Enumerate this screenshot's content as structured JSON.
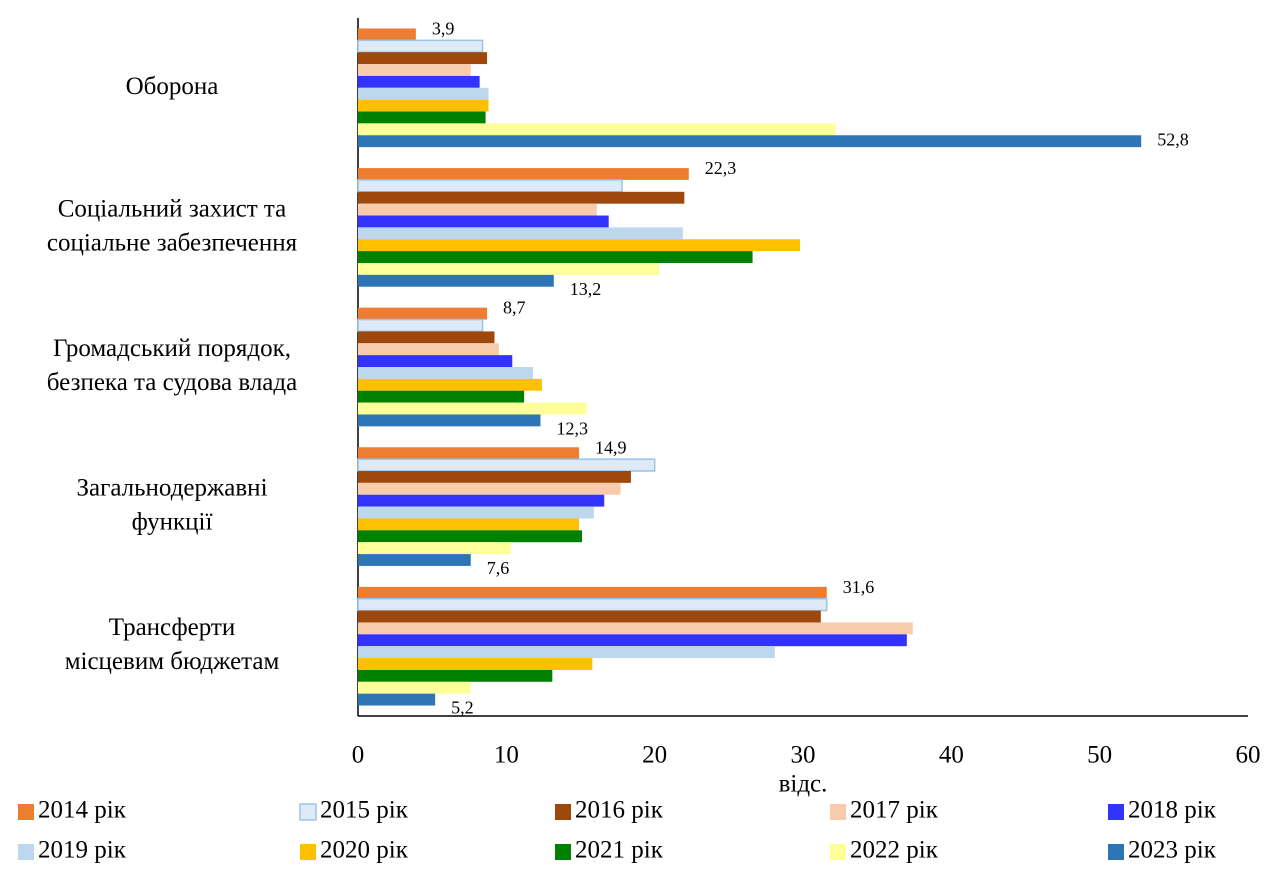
{
  "chart_data": {
    "type": "barh",
    "x_label": "відс.",
    "categories": [
      "Оборона",
      "Соціальний захист та\nсоціальне забезпечення",
      "Громадський порядок,\nбезпека та судова влада",
      "Загальнодержавні\nфункції",
      "Трансферти\nмісцевим бюджетам"
    ],
    "series": [
      {
        "name": "2014 рік",
        "color": "#ed7d31",
        "values": [
          3.9,
          22.3,
          8.7,
          14.9,
          31.6
        ],
        "value_labels": [
          "3,9",
          "22,3",
          "8,7",
          "14,9",
          "31,6"
        ]
      },
      {
        "name": "2015 рік",
        "color": "#deeaf8",
        "edge": "#9dc3e6",
        "values": [
          8.4,
          17.8,
          8.4,
          20.0,
          31.6
        ]
      },
      {
        "name": "2016 рік",
        "color": "#9e480e",
        "values": [
          8.7,
          22.0,
          9.2,
          18.4,
          31.2
        ]
      },
      {
        "name": "2017 рік",
        "color": "#f8cbad",
        "values": [
          7.6,
          16.1,
          9.5,
          17.7,
          37.4
        ]
      },
      {
        "name": "2018 рік",
        "color": "#3333ff",
        "values": [
          8.2,
          16.9,
          10.4,
          16.6,
          37.0
        ]
      },
      {
        "name": "2019 рік",
        "color": "#bdd7ee",
        "values": [
          8.8,
          21.9,
          11.8,
          15.9,
          28.1
        ]
      },
      {
        "name": "2020 рік",
        "color": "#ffc000",
        "values": [
          8.8,
          29.8,
          12.4,
          14.9,
          15.8
        ]
      },
      {
        "name": "2021 рік",
        "color": "#008000",
        "values": [
          8.6,
          26.6,
          11.2,
          15.1,
          13.1
        ]
      },
      {
        "name": "2022 рік",
        "color": "#ffff99",
        "values": [
          32.2,
          20.3,
          15.4,
          10.3,
          7.6
        ]
      },
      {
        "name": "2023 рік",
        "color": "#2e75b6",
        "values": [
          52.8,
          13.2,
          12.3,
          7.6,
          5.2
        ],
        "value_labels": [
          "52,8",
          "13,2",
          "12,3",
          "7,6",
          "5,2"
        ]
      }
    ],
    "xlim": [
      0,
      60
    ],
    "xticks": [
      0,
      10,
      20,
      30,
      40,
      50,
      60
    ],
    "grid": false,
    "legend": "bottom"
  }
}
